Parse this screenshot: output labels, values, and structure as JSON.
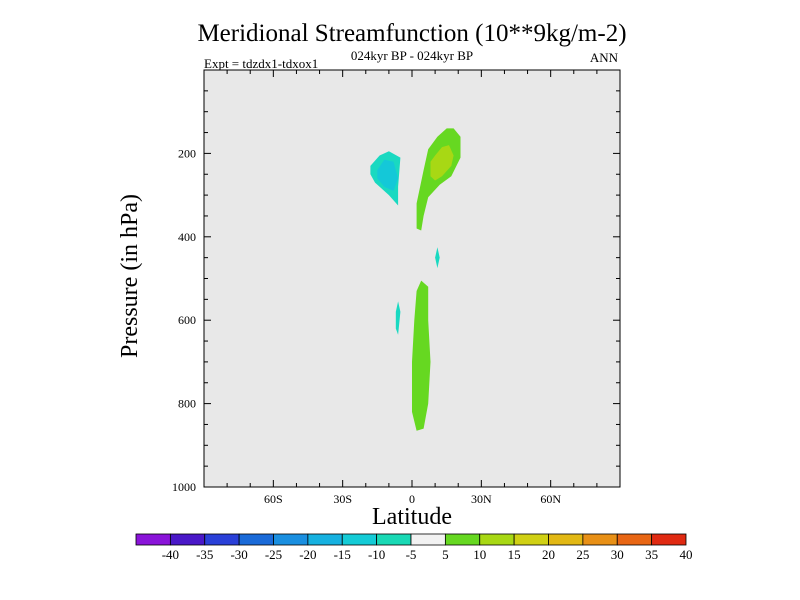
{
  "chart_data": {
    "type": "contour",
    "title": "Meridional Streamfunction (10**9kg/m-2)",
    "subtitle": "024kyr BP - 024kyr BP",
    "left_label": "Expt = tdzdx1-tdxox1",
    "right_label": "ANN",
    "xlabel": "Latitude",
    "ylabel": "Pressure (in hPa)",
    "xlim": [
      -90,
      90
    ],
    "ylim": [
      1000,
      0
    ],
    "x_ticks": [
      {
        "value": -60,
        "label": "60S"
      },
      {
        "value": -30,
        "label": "30S"
      },
      {
        "value": 0,
        "label": "0"
      },
      {
        "value": 30,
        "label": "30N"
      },
      {
        "value": 60,
        "label": "60N"
      }
    ],
    "y_ticks": [
      {
        "value": 200,
        "label": "200"
      },
      {
        "value": 400,
        "label": "400"
      },
      {
        "value": 600,
        "label": "600"
      },
      {
        "value": 800,
        "label": "800"
      },
      {
        "value": 1000,
        "label": "1000"
      }
    ],
    "background_color": "#e8e8e8",
    "regions": [
      {
        "name": "upper-negative-cell",
        "value": -7.5,
        "color": "#19d9c1",
        "points": [
          [
            -18,
            230
          ],
          [
            -14,
            205
          ],
          [
            -10,
            195
          ],
          [
            -5,
            210
          ],
          [
            -6,
            280
          ],
          [
            -6,
            325
          ],
          [
            -10,
            300
          ],
          [
            -16,
            270
          ],
          [
            -18,
            250
          ]
        ]
      },
      {
        "name": "upper-negative-core",
        "value": -12.5,
        "color": "#14c8d8",
        "points": [
          [
            -15,
            240
          ],
          [
            -12,
            215
          ],
          [
            -8,
            220
          ],
          [
            -6,
            260
          ],
          [
            -8,
            290
          ],
          [
            -12,
            280
          ],
          [
            -15,
            260
          ]
        ]
      },
      {
        "name": "upper-positive-cell",
        "value": 7.5,
        "color": "#66d821",
        "points": [
          [
            2,
            380
          ],
          [
            2,
            320
          ],
          [
            5,
            240
          ],
          [
            7,
            190
          ],
          [
            11,
            160
          ],
          [
            15,
            140
          ],
          [
            18,
            140
          ],
          [
            21,
            160
          ],
          [
            21,
            210
          ],
          [
            17,
            255
          ],
          [
            12,
            275
          ],
          [
            7,
            305
          ],
          [
            5,
            350
          ],
          [
            4,
            385
          ]
        ]
      },
      {
        "name": "upper-positive-core",
        "value": 12.5,
        "color": "#a8d814",
        "points": [
          [
            8,
            255
          ],
          [
            8,
            220
          ],
          [
            10,
            205
          ],
          [
            13,
            185
          ],
          [
            16,
            180
          ],
          [
            18,
            205
          ],
          [
            17,
            230
          ],
          [
            13,
            255
          ],
          [
            10,
            265
          ]
        ]
      },
      {
        "name": "mid-negative-patch",
        "value": -7.5,
        "color": "#19d9c1",
        "points": [
          [
            -7,
            580
          ],
          [
            -6,
            555
          ],
          [
            -5,
            580
          ],
          [
            -6,
            635
          ],
          [
            -7,
            620
          ]
        ]
      },
      {
        "name": "mid-negative-sliver",
        "value": -7.5,
        "color": "#19d9c1",
        "points": [
          [
            10,
            450
          ],
          [
            11,
            425
          ],
          [
            12,
            450
          ],
          [
            11,
            475
          ]
        ]
      },
      {
        "name": "lower-positive-cell",
        "value": 7.5,
        "color": "#66d821",
        "points": [
          [
            2,
            530
          ],
          [
            4,
            505
          ],
          [
            7,
            520
          ],
          [
            7,
            600
          ],
          [
            8,
            700
          ],
          [
            7,
            800
          ],
          [
            5,
            860
          ],
          [
            2,
            865
          ],
          [
            0,
            820
          ],
          [
            0,
            700
          ],
          [
            1,
            600
          ]
        ]
      }
    ],
    "colorbar": {
      "labels": [
        "-40",
        "-35",
        "-30",
        "-25",
        "-20",
        "-15",
        "-10",
        "-5",
        "5",
        "10",
        "15",
        "20",
        "25",
        "30",
        "35",
        "40"
      ],
      "colors": [
        "#8a14d9",
        "#4a18c8",
        "#2a40d8",
        "#1a6ad8",
        "#1a8fe0",
        "#16b1e0",
        "#14cbd6",
        "#19d9b5",
        "#f2f2f2",
        "#66d821",
        "#a8d814",
        "#d0d014",
        "#e2b814",
        "#e89016",
        "#e86614",
        "#e02a12"
      ]
    }
  }
}
